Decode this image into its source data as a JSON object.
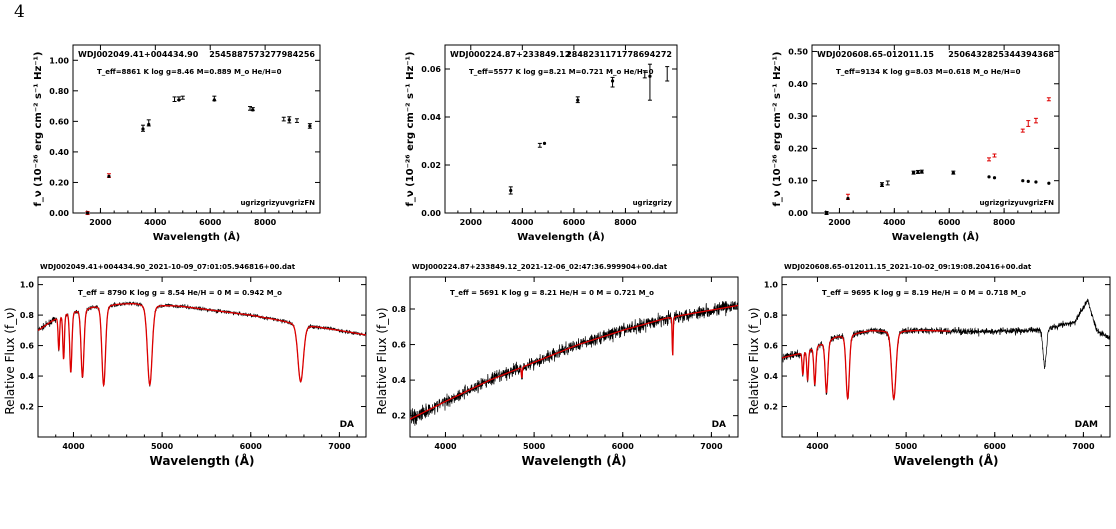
{
  "page": {
    "number": "4"
  },
  "chart_data": [
    {
      "type": "scatter",
      "id": "sed1",
      "object": "WDJ002049.41+004434.90",
      "gaia_id": "2545887573277984256",
      "params": "T_eff=8861 K log g=8.46 M=0.889 M_o He/H=0",
      "bands_label": "ugrizgrizyuvgrizFN",
      "xlabel": "Wavelength (Å)",
      "ylabel": "f_ν (10⁻²⁶ erg cm⁻² s⁻¹ Hz⁻¹)",
      "xlim": [
        1000,
        10000
      ],
      "ylim": [
        0,
        1.1
      ],
      "xticks": [
        2000,
        4000,
        6000,
        8000
      ],
      "yticks": [
        0.0,
        0.2,
        0.4,
        0.6,
        0.8,
        1.0
      ],
      "ytick_labels": [
        "0.00",
        "0.20",
        "0.40",
        "0.60",
        "0.80",
        "1.00"
      ],
      "observed": [
        {
          "x": 1530,
          "y": 0.0,
          "err": 0.01
        },
        {
          "x": 2310,
          "y": 0.245,
          "err": 0.012
        },
        {
          "x": 3550,
          "y": 0.555,
          "err": 0.02
        },
        {
          "x": 3760,
          "y": 0.59,
          "err": 0.02
        },
        {
          "x": 4700,
          "y": 0.745,
          "err": 0.015
        },
        {
          "x": 4860,
          "y": 0.75,
          "err": 0.01
        },
        {
          "x": 5000,
          "y": 0.755,
          "err": 0.01
        },
        {
          "x": 6150,
          "y": 0.75,
          "err": 0.015
        },
        {
          "x": 7450,
          "y": 0.685,
          "err": 0.012
        },
        {
          "x": 7550,
          "y": 0.68,
          "err": 0.01
        },
        {
          "x": 8680,
          "y": 0.615,
          "err": 0.012
        },
        {
          "x": 8880,
          "y": 0.61,
          "err": 0.02
        },
        {
          "x": 9160,
          "y": 0.605,
          "err": 0.012
        },
        {
          "x": 9630,
          "y": 0.57,
          "err": 0.015
        }
      ],
      "model": [
        {
          "x": 1530,
          "y": 0.0
        },
        {
          "x": 2310,
          "y": 0.24
        },
        {
          "x": 3550,
          "y": 0.55
        },
        {
          "x": 3760,
          "y": 0.58
        },
        {
          "x": 4860,
          "y": 0.74
        },
        {
          "x": 6150,
          "y": 0.74
        },
        {
          "x": 7550,
          "y": 0.675
        },
        {
          "x": 8880,
          "y": 0.61
        },
        {
          "x": 9630,
          "y": 0.57
        }
      ]
    },
    {
      "type": "scatter",
      "id": "sed2",
      "object": "WDJ000224.87+233849.12",
      "gaia_id": "2848231171778694272",
      "params": "T_eff=5577 K log g=8.21 M=0.721 M_o He/H=0",
      "bands_label": "ugrizgrizy",
      "xlabel": "Wavelength (Å)",
      "ylabel": "f_ν (10⁻²⁶ erg cm⁻² s⁻¹ Hz⁻¹)",
      "xlim": [
        1000,
        10000
      ],
      "ylim": [
        0,
        0.07
      ],
      "xticks": [
        2000,
        4000,
        6000,
        8000
      ],
      "yticks": [
        0.0,
        0.02,
        0.04,
        0.06
      ],
      "ytick_labels": [
        "0.00",
        "0.02",
        "0.04",
        "0.06"
      ],
      "observed": [
        {
          "x": 3550,
          "y": 0.0094,
          "err": 0.0015
        },
        {
          "x": 4680,
          "y": 0.0282,
          "err": 0.0008
        },
        {
          "x": 6150,
          "y": 0.0472,
          "err": 0.0012
        },
        {
          "x": 7500,
          "y": 0.0545,
          "err": 0.002
        },
        {
          "x": 8750,
          "y": 0.0578,
          "err": 0.0015
        },
        {
          "x": 8950,
          "y": 0.0545,
          "err": 0.0075
        },
        {
          "x": 9620,
          "y": 0.058,
          "err": 0.003
        }
      ],
      "model": [
        {
          "x": 3550,
          "y": 0.0094
        },
        {
          "x": 4860,
          "y": 0.029
        },
        {
          "x": 6150,
          "y": 0.047
        },
        {
          "x": 7500,
          "y": 0.055
        },
        {
          "x": 8950,
          "y": 0.057
        }
      ]
    },
    {
      "type": "scatter",
      "id": "sed3",
      "object": "WDJ020608.65-012011.15",
      "gaia_id": "2506432825344394368",
      "params": "T_eff=9134 K log g=8.03 M=0.618 M_o He/H=0",
      "bands_label": "ugrizgrizyuvgrizFN",
      "xlabel": "Wavelength (Å)",
      "ylabel": "f_ν (10⁻²⁶ erg cm⁻² s⁻¹ Hz⁻¹)",
      "xlim": [
        1000,
        10000
      ],
      "ylim": [
        0,
        0.52
      ],
      "xticks": [
        2000,
        4000,
        6000,
        8000
      ],
      "yticks": [
        0.0,
        0.1,
        0.2,
        0.3,
        0.4,
        0.5
      ],
      "ytick_labels": [
        "0.00",
        "0.10",
        "0.20",
        "0.30",
        "0.40",
        "0.50"
      ],
      "observed": [
        {
          "x": 1530,
          "y": 0.0,
          "err": 0.003
        },
        {
          "x": 2310,
          "y": 0.05,
          "err": 0.008
        },
        {
          "x": 3550,
          "y": 0.088,
          "err": 0.006
        },
        {
          "x": 3760,
          "y": 0.093,
          "err": 0.006
        },
        {
          "x": 4700,
          "y": 0.125,
          "err": 0.004
        },
        {
          "x": 4860,
          "y": 0.127,
          "err": 0.003
        },
        {
          "x": 5000,
          "y": 0.128,
          "err": 0.003
        },
        {
          "x": 6150,
          "y": 0.125,
          "err": 0.003
        },
        {
          "x": 7450,
          "y": 0.166,
          "err": 0.004
        },
        {
          "x": 7650,
          "y": 0.178,
          "err": 0.004
        },
        {
          "x": 8680,
          "y": 0.255,
          "err": 0.003
        },
        {
          "x": 8880,
          "y": 0.277,
          "err": 0.009
        },
        {
          "x": 9160,
          "y": 0.286,
          "err": 0.007
        },
        {
          "x": 9630,
          "y": 0.352,
          "err": 0.004
        }
      ],
      "model": [
        {
          "x": 1530,
          "y": 0.0
        },
        {
          "x": 2310,
          "y": 0.045
        },
        {
          "x": 3550,
          "y": 0.088
        },
        {
          "x": 4700,
          "y": 0.125
        },
        {
          "x": 4860,
          "y": 0.126
        },
        {
          "x": 5000,
          "y": 0.127
        },
        {
          "x": 6150,
          "y": 0.124
        },
        {
          "x": 7450,
          "y": 0.112
        },
        {
          "x": 7650,
          "y": 0.109
        },
        {
          "x": 8680,
          "y": 0.1
        },
        {
          "x": 8880,
          "y": 0.098
        },
        {
          "x": 9160,
          "y": 0.096
        },
        {
          "x": 9630,
          "y": 0.092
        }
      ]
    },
    {
      "type": "line",
      "id": "spec1",
      "filename": "WDJ002049.41+004434.90_2021-10-09_07:01:05.946816+00.dat",
      "params": "T_eff = 8790 K   log g = 8.54   He/H = 0   M = 0.942 M_o",
      "class": "DA",
      "xlabel": "Wavelength (Å)",
      "ylabel": "Relative Flux (f_ν)",
      "xlim": [
        3600,
        7300
      ],
      "ylim": [
        0.0,
        1.05
      ],
      "xticks": [
        4000,
        5000,
        6000,
        7000
      ],
      "yticks": [
        0.2,
        0.4,
        0.6,
        0.8,
        1.0
      ],
      "continuum": [
        [
          3600,
          0.7
        ],
        [
          3900,
          0.82
        ],
        [
          4300,
          0.87
        ],
        [
          4700,
          0.88
        ],
        [
          5200,
          0.86
        ],
        [
          6000,
          0.8
        ],
        [
          6600,
          0.74
        ],
        [
          7300,
          0.67
        ]
      ],
      "lines": [
        {
          "center": 3835,
          "depth": 0.22,
          "width": 8
        },
        {
          "center": 3889,
          "depth": 0.3,
          "width": 9
        },
        {
          "center": 3970,
          "depth": 0.4,
          "width": 12
        },
        {
          "center": 4102,
          "depth": 0.45,
          "width": 16
        },
        {
          "center": 4341,
          "depth": 0.53,
          "width": 20
        },
        {
          "center": 4861,
          "depth": 0.53,
          "width": 26
        },
        {
          "center": 6563,
          "depth": 0.38,
          "width": 30
        }
      ],
      "noise": 0.012
    },
    {
      "type": "line",
      "id": "spec2",
      "filename": "WDJ000224.87+233849.12_2021-12-06_02:47:36.999904+00.dat",
      "params": "T_eff =  5691 K   log g = 8.21   He/H = 0   M = 0.721 M_o",
      "class": "DA",
      "xlabel": "Wavelength (Å)",
      "ylabel": "Relative Flux (f_ν)",
      "xlim": [
        3600,
        7300
      ],
      "ylim": [
        0.08,
        0.98
      ],
      "xticks": [
        4000,
        5000,
        6000,
        7000
      ],
      "yticks": [
        0.2,
        0.4,
        0.6,
        0.8
      ],
      "continuum": [
        [
          3600,
          0.18
        ],
        [
          4000,
          0.28
        ],
        [
          4500,
          0.4
        ],
        [
          5000,
          0.5
        ],
        [
          5500,
          0.6
        ],
        [
          6000,
          0.68
        ],
        [
          6500,
          0.75
        ],
        [
          7300,
          0.82
        ]
      ],
      "lines": [
        {
          "center": 4861,
          "depth": 0.06,
          "width": 5
        },
        {
          "center": 6563,
          "depth": 0.22,
          "width": 5
        }
      ],
      "noise": 0.035
    },
    {
      "type": "line",
      "id": "spec3",
      "filename": "WDJ020608.65-012011.15_2021-10-02_09:19:08.20416+00.dat",
      "params": "T_eff =  9695 K   log g = 8.19   He/H = 0   M = 0.718 M_o",
      "class": "DAM",
      "xlabel": "Wavelength (Å)",
      "ylabel": "Relative Flux (f_ν)",
      "xlim": [
        3600,
        7300
      ],
      "ylim": [
        0.0,
        1.05
      ],
      "xticks": [
        4000,
        5000,
        6000,
        7000
      ],
      "yticks": [
        0.2,
        0.4,
        0.6,
        0.8,
        1.0
      ],
      "continuum": [
        [
          3600,
          0.52
        ],
        [
          3800,
          0.55
        ],
        [
          4200,
          0.66
        ],
        [
          4600,
          0.7
        ],
        [
          5200,
          0.7
        ],
        [
          5800,
          0.69
        ],
        [
          6400,
          0.7
        ],
        [
          6900,
          0.75
        ],
        [
          7050,
          0.9
        ],
        [
          7150,
          0.7
        ],
        [
          7300,
          0.65
        ]
      ],
      "lines": [
        {
          "center": 3835,
          "depth": 0.15,
          "width": 8
        },
        {
          "center": 3889,
          "depth": 0.2,
          "width": 9
        },
        {
          "center": 3970,
          "depth": 0.25,
          "width": 11
        },
        {
          "center": 4102,
          "depth": 0.34,
          "width": 15
        },
        {
          "center": 4341,
          "depth": 0.42,
          "width": 18
        },
        {
          "center": 4861,
          "depth": 0.45,
          "width": 24
        },
        {
          "center": 6563,
          "depth": 0.25,
          "width": 18
        }
      ],
      "model_to": 5500,
      "noise": 0.02
    }
  ]
}
